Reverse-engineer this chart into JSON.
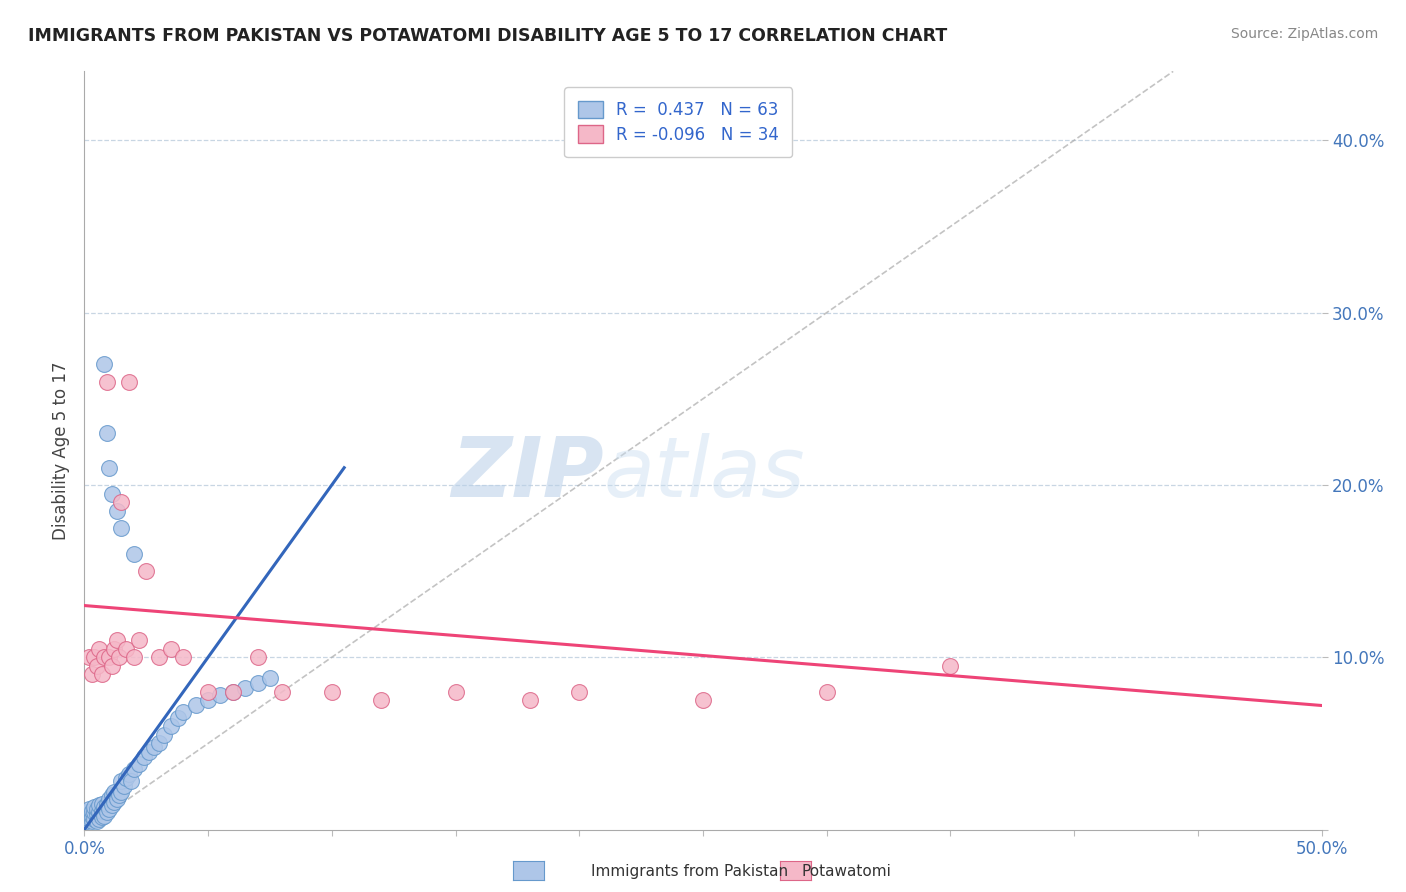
{
  "title": "IMMIGRANTS FROM PAKISTAN VS POTAWATOMI DISABILITY AGE 5 TO 17 CORRELATION CHART",
  "source": "Source: ZipAtlas.com",
  "ylabel": "Disability Age 5 to 17",
  "xlim": [
    0.0,
    0.5
  ],
  "ylim": [
    0.0,
    0.44
  ],
  "xticks": [
    0.0,
    0.05,
    0.1,
    0.15,
    0.2,
    0.25,
    0.3,
    0.35,
    0.4,
    0.45,
    0.5
  ],
  "yticks": [
    0.0,
    0.1,
    0.2,
    0.3,
    0.4
  ],
  "ytick_labels": [
    "",
    "10.0%",
    "20.0%",
    "30.0%",
    "40.0%"
  ],
  "blue_R": 0.437,
  "blue_N": 63,
  "pink_R": -0.096,
  "pink_N": 34,
  "blue_color": "#aec6e8",
  "pink_color": "#f5b8c8",
  "blue_edge": "#6699cc",
  "pink_edge": "#dd6688",
  "blue_line_color": "#3366bb",
  "pink_line_color": "#ee4477",
  "blue_scatter_x": [
    0.001,
    0.001,
    0.001,
    0.002,
    0.002,
    0.002,
    0.003,
    0.003,
    0.003,
    0.004,
    0.004,
    0.004,
    0.005,
    0.005,
    0.005,
    0.006,
    0.006,
    0.006,
    0.007,
    0.007,
    0.007,
    0.008,
    0.008,
    0.009,
    0.009,
    0.01,
    0.01,
    0.011,
    0.011,
    0.012,
    0.012,
    0.013,
    0.014,
    0.015,
    0.015,
    0.016,
    0.017,
    0.018,
    0.019,
    0.02,
    0.022,
    0.024,
    0.026,
    0.028,
    0.03,
    0.032,
    0.035,
    0.038,
    0.04,
    0.045,
    0.05,
    0.055,
    0.06,
    0.065,
    0.07,
    0.075,
    0.008,
    0.009,
    0.01,
    0.011,
    0.013,
    0.015,
    0.02
  ],
  "blue_scatter_y": [
    0.005,
    0.008,
    0.01,
    0.006,
    0.009,
    0.012,
    0.005,
    0.008,
    0.011,
    0.006,
    0.01,
    0.013,
    0.005,
    0.009,
    0.012,
    0.006,
    0.01,
    0.014,
    0.007,
    0.011,
    0.015,
    0.008,
    0.013,
    0.01,
    0.015,
    0.012,
    0.018,
    0.014,
    0.02,
    0.016,
    0.022,
    0.018,
    0.02,
    0.022,
    0.028,
    0.025,
    0.03,
    0.032,
    0.028,
    0.035,
    0.038,
    0.042,
    0.045,
    0.048,
    0.05,
    0.055,
    0.06,
    0.065,
    0.068,
    0.072,
    0.075,
    0.078,
    0.08,
    0.082,
    0.085,
    0.088,
    0.27,
    0.23,
    0.21,
    0.195,
    0.185,
    0.175,
    0.16
  ],
  "pink_scatter_x": [
    0.002,
    0.003,
    0.004,
    0.005,
    0.006,
    0.007,
    0.008,
    0.009,
    0.01,
    0.011,
    0.012,
    0.013,
    0.014,
    0.015,
    0.017,
    0.018,
    0.02,
    0.022,
    0.025,
    0.03,
    0.035,
    0.04,
    0.05,
    0.06,
    0.07,
    0.08,
    0.1,
    0.12,
    0.15,
    0.18,
    0.2,
    0.25,
    0.3,
    0.35
  ],
  "pink_scatter_y": [
    0.1,
    0.09,
    0.1,
    0.095,
    0.105,
    0.09,
    0.1,
    0.26,
    0.1,
    0.095,
    0.105,
    0.11,
    0.1,
    0.19,
    0.105,
    0.26,
    0.1,
    0.11,
    0.15,
    0.1,
    0.105,
    0.1,
    0.08,
    0.08,
    0.1,
    0.08,
    0.08,
    0.075,
    0.08,
    0.075,
    0.08,
    0.075,
    0.08,
    0.095
  ],
  "blue_trend_x": [
    0.0,
    0.105
  ],
  "blue_trend_y": [
    0.0,
    0.21
  ],
  "pink_trend_x": [
    0.0,
    0.5
  ],
  "pink_trend_y": [
    0.13,
    0.072
  ],
  "watermark_zip": "ZIP",
  "watermark_atlas": "atlas"
}
